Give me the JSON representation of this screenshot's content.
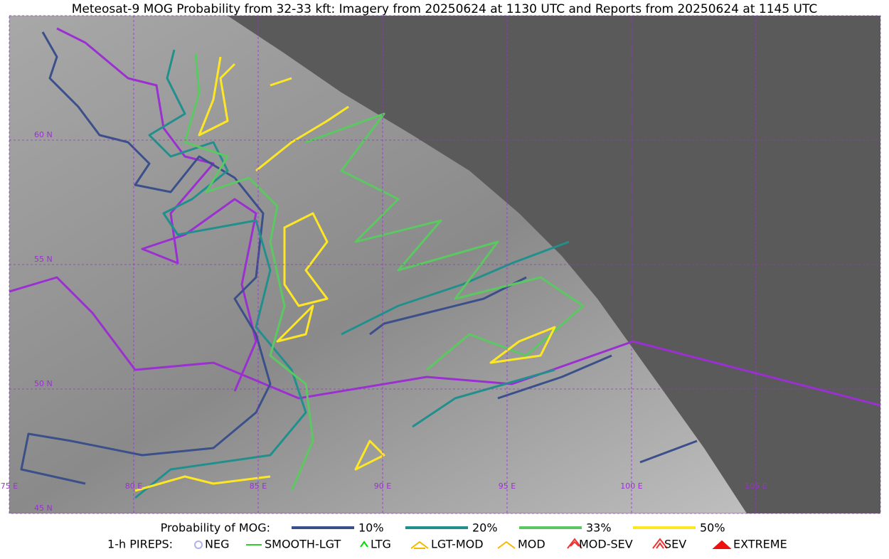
{
  "header": {
    "title": "Meteosat-9 MOG Probability from 32-33 kft: Imagery from 20250624 at 1130 UTC and Reports from 20250624 at 1145 UTC"
  },
  "map": {
    "lat_labels": [
      "60 N",
      "55 N",
      "50 N",
      "45 N"
    ],
    "lon_labels": [
      "75 E",
      "80 E",
      "85 E",
      "90 E",
      "95 E",
      "100 E",
      "105 E"
    ]
  },
  "legend": {
    "probability": {
      "label": "Probability of MOG:",
      "items": [
        {
          "label": "10%",
          "color": "#3b4f8a"
        },
        {
          "label": "20%",
          "color": "#21908c"
        },
        {
          "label": "33%",
          "color": "#5bc862"
        },
        {
          "label": "50%",
          "color": "#fde725"
        }
      ]
    },
    "pireps": {
      "label": "1-h PIREPS:",
      "items": [
        {
          "label": "NEG",
          "color": "#b0b0f0"
        },
        {
          "label": "SMOOTH-LGT",
          "color": "#33cc33"
        },
        {
          "label": "LTG",
          "color": "#00dd00"
        },
        {
          "label": "LGT-MOD",
          "color": "#f5b800"
        },
        {
          "label": "MOD",
          "color": "#f5b800"
        },
        {
          "label": "MOD-SEV",
          "color": "#ee3333"
        },
        {
          "label": "SEV",
          "color": "#ee3333"
        },
        {
          "label": "EXTREME",
          "color": "#ee1111"
        }
      ]
    }
  }
}
